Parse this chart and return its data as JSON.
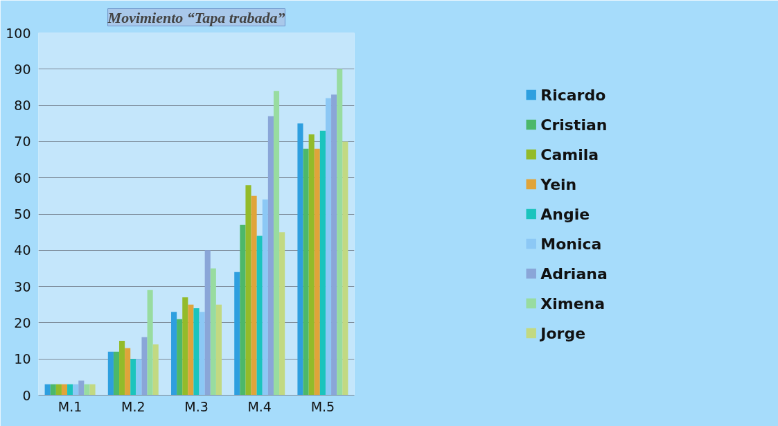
{
  "chart_data": {
    "type": "bar",
    "title": "Movimiento “Tapa trabada”",
    "categories": [
      "M.1",
      "M.2",
      "M.3",
      "M.4",
      "M.5"
    ],
    "ylim": [
      0,
      100
    ],
    "yticks": [
      0,
      10,
      20,
      30,
      40,
      50,
      60,
      70,
      80,
      90,
      100
    ],
    "grid": "y",
    "legend": "right",
    "series": [
      {
        "name": "Ricardo",
        "color": "#2e9fdf",
        "values": [
          3,
          12,
          23,
          34,
          75
        ]
      },
      {
        "name": "Cristian",
        "color": "#4cb86a",
        "values": [
          3,
          12,
          21,
          47,
          68
        ]
      },
      {
        "name": "Camila",
        "color": "#93bb2a",
        "values": [
          3,
          15,
          27,
          58,
          72
        ]
      },
      {
        "name": "Yein",
        "color": "#e0a43a",
        "values": [
          3,
          13,
          25,
          55,
          68
        ]
      },
      {
        "name": "Angie",
        "color": "#1bc4bd",
        "values": [
          3,
          10,
          24,
          44,
          73
        ]
      },
      {
        "name": "Monica",
        "color": "#8cc8f5",
        "values": [
          3,
          10,
          23,
          54,
          82
        ]
      },
      {
        "name": "Adriana",
        "color": "#8aa6d8",
        "values": [
          4,
          16,
          40,
          77,
          83
        ]
      },
      {
        "name": "Ximena",
        "color": "#98dca0",
        "values": [
          3,
          29,
          35,
          84,
          90
        ]
      },
      {
        "name": "Jorge",
        "color": "#c2d982",
        "values": [
          3,
          14,
          25,
          45,
          70
        ]
      }
    ]
  }
}
